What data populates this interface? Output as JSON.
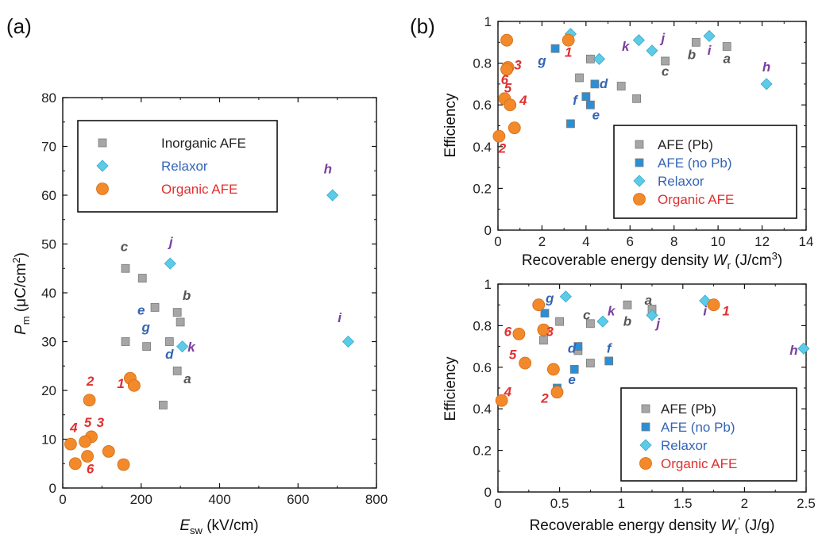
{
  "colors": {
    "AFE (Pb)": "#a6a6a6",
    "AFE (no Pb)": "#2a8fd6",
    "Relaxor": "#5ccbe8",
    "Organic AFE": "#f28a2c",
    "Inorganic AFE": "#a6a6a6"
  },
  "label_colors": {
    "inorganic": "#555555",
    "nopb": "#3465b5",
    "relaxor": "#7a3fa0",
    "organic": "#e03030"
  },
  "legend_text_colors": {
    "AFE (Pb)": "#222222",
    "Inorganic AFE": "#222222",
    "AFE (no Pb)": "#3465b5",
    "Relaxor": "#3465b5",
    "Organic AFE": "#e03030"
  },
  "chart_data": [
    {
      "panel": "(a)",
      "type": "scatter",
      "xlabel": "E_sw (kV/cm)",
      "xlabel_main": "E",
      "xlabel_sub": "sw",
      "xlabel_unit": "(kV/cm)",
      "ylabel": "P_m (μC/cm²)",
      "ylabel_main": "P",
      "ylabel_sub": "m",
      "ylabel_unit": "(μC/cm",
      "ylabel_sup": "2",
      "ylabel_close": ")",
      "xlim": [
        0,
        800
      ],
      "ylim": [
        0,
        80
      ],
      "xticks": [
        0,
        200,
        400,
        600,
        800
      ],
      "yticks": [
        0,
        10,
        20,
        30,
        40,
        50,
        60,
        70,
        80
      ],
      "legend": [
        "Inorganic AFE",
        "Relaxor",
        "Organic AFE"
      ],
      "series": [
        {
          "name": "Inorganic AFE",
          "marker": "square",
          "points": [
            {
              "x": 160,
              "y": 45,
              "label": "c"
            },
            {
              "x": 203,
              "y": 43
            },
            {
              "x": 235,
              "y": 37
            },
            {
              "x": 292,
              "y": 36,
              "label": "b"
            },
            {
              "x": 300,
              "y": 34
            },
            {
              "x": 160,
              "y": 30
            },
            {
              "x": 214,
              "y": 29
            },
            {
              "x": 272,
              "y": 30
            },
            {
              "x": 292,
              "y": 24,
              "label": "a"
            },
            {
              "x": 256,
              "y": 17
            }
          ]
        },
        {
          "name": "AFE (no Pb)",
          "marker": "square",
          "points": [
            {
              "x": 0,
              "y": 0,
              "label": "e",
              "hide": true
            },
            {
              "x": 0,
              "y": 0,
              "label": "g",
              "hide": true
            },
            {
              "x": 0,
              "y": 0,
              "label": "d",
              "hide": true
            }
          ]
        },
        {
          "name": "Relaxor",
          "marker": "diamond",
          "points": [
            {
              "x": 688,
              "y": 60,
              "label": "h"
            },
            {
              "x": 274,
              "y": 46,
              "label": "j"
            },
            {
              "x": 728,
              "y": 30,
              "label": "i"
            },
            {
              "x": 305,
              "y": 29,
              "label": "k"
            }
          ]
        },
        {
          "name": "Organic AFE",
          "marker": "circle",
          "points": [
            {
              "x": 172,
              "y": 22.5,
              "label": "1"
            },
            {
              "x": 182,
              "y": 21
            },
            {
              "x": 68,
              "y": 18,
              "label": "2"
            },
            {
              "x": 73,
              "y": 10.5,
              "label": "3"
            },
            {
              "x": 20,
              "y": 9,
              "label": "4"
            },
            {
              "x": 57,
              "y": 9.5,
              "label": "5"
            },
            {
              "x": 117,
              "y": 7.5
            },
            {
              "x": 63,
              "y": 6.5,
              "label": "6"
            },
            {
              "x": 32,
              "y": 5
            },
            {
              "x": 155,
              "y": 4.8
            }
          ]
        }
      ],
      "text_labels": [
        {
          "text": "c",
          "x": 157,
          "y": 48.5,
          "group": "inorganic"
        },
        {
          "text": "b",
          "x": 316,
          "y": 38.5,
          "group": "inorganic"
        },
        {
          "text": "a",
          "x": 318,
          "y": 21.5,
          "group": "inorganic"
        },
        {
          "text": "e",
          "x": 200,
          "y": 35.5,
          "group": "nopb"
        },
        {
          "text": "g",
          "x": 212,
          "y": 32,
          "group": "nopb"
        },
        {
          "text": "d",
          "x": 272,
          "y": 26.5,
          "group": "nopb"
        },
        {
          "text": "h",
          "x": 676,
          "y": 64.5,
          "group": "relaxor"
        },
        {
          "text": "j",
          "x": 276,
          "y": 49.5,
          "group": "relaxor"
        },
        {
          "text": "i",
          "x": 706,
          "y": 34,
          "group": "relaxor"
        },
        {
          "text": "k",
          "x": 328,
          "y": 28,
          "group": "relaxor"
        },
        {
          "text": "1",
          "x": 148,
          "y": 20.5,
          "group": "organic"
        },
        {
          "text": "2",
          "x": 70,
          "y": 21,
          "group": "organic"
        },
        {
          "text": "3",
          "x": 96,
          "y": 12.5,
          "group": "organic"
        },
        {
          "text": "4",
          "x": 28,
          "y": 11.5,
          "group": "organic"
        },
        {
          "text": "5",
          "x": 64,
          "y": 12.5,
          "group": "organic"
        },
        {
          "text": "6",
          "x": 70,
          "y": 3,
          "group": "organic"
        }
      ]
    },
    {
      "panel": "(b) top",
      "type": "scatter",
      "xlabel": "Recoverable energy density W_r (J/cm³)",
      "xlabel_main": "Recoverable energy density ",
      "xlabel_var": "W",
      "xlabel_sub": "r",
      "xlabel_unit": " (J/cm",
      "xlabel_sup": "3",
      "xlabel_close": ")",
      "ylabel": "Efficiency",
      "xlim": [
        0,
        14
      ],
      "ylim": [
        0,
        1
      ],
      "xticks": [
        0,
        2,
        4,
        6,
        8,
        10,
        12,
        14
      ],
      "yticks": [
        0,
        0.2,
        0.4,
        0.6,
        0.8,
        1
      ],
      "legend": [
        "AFE (Pb)",
        "AFE (no Pb)",
        "Relaxor",
        "Organic AFE"
      ],
      "series": [
        {
          "name": "AFE (Pb)",
          "marker": "square",
          "points": [
            {
              "x": 10.4,
              "y": 0.88
            },
            {
              "x": 9.0,
              "y": 0.9
            },
            {
              "x": 7.6,
              "y": 0.81
            },
            {
              "x": 4.2,
              "y": 0.82
            },
            {
              "x": 3.7,
              "y": 0.73
            },
            {
              "x": 5.6,
              "y": 0.69
            },
            {
              "x": 6.3,
              "y": 0.63
            }
          ]
        },
        {
          "name": "AFE (no Pb)",
          "marker": "square",
          "points": [
            {
              "x": 2.6,
              "y": 0.87
            },
            {
              "x": 4.4,
              "y": 0.7
            },
            {
              "x": 4.0,
              "y": 0.64
            },
            {
              "x": 4.2,
              "y": 0.6
            },
            {
              "x": 3.3,
              "y": 0.51
            }
          ]
        },
        {
          "name": "Relaxor",
          "marker": "diamond",
          "points": [
            {
              "x": 3.3,
              "y": 0.94
            },
            {
              "x": 6.4,
              "y": 0.91
            },
            {
              "x": 9.6,
              "y": 0.93
            },
            {
              "x": 7.0,
              "y": 0.86
            },
            {
              "x": 4.6,
              "y": 0.82
            },
            {
              "x": 12.2,
              "y": 0.7
            }
          ]
        },
        {
          "name": "Organic AFE",
          "marker": "circle",
          "points": [
            {
              "x": 0.4,
              "y": 0.91
            },
            {
              "x": 3.2,
              "y": 0.91
            },
            {
              "x": 0.45,
              "y": 0.78
            },
            {
              "x": 0.4,
              "y": 0.77
            },
            {
              "x": 0.3,
              "y": 0.63
            },
            {
              "x": 0.55,
              "y": 0.6
            },
            {
              "x": 0.75,
              "y": 0.49
            },
            {
              "x": 0.05,
              "y": 0.45
            }
          ]
        }
      ],
      "text_labels": [
        {
          "text": "a",
          "x": 10.4,
          "y": 0.8,
          "group": "inorganic"
        },
        {
          "text": "b",
          "x": 8.8,
          "y": 0.82,
          "group": "inorganic"
        },
        {
          "text": "c",
          "x": 7.6,
          "y": 0.74,
          "group": "inorganic"
        },
        {
          "text": "g",
          "x": 2.0,
          "y": 0.79,
          "group": "nopb"
        },
        {
          "text": "d",
          "x": 4.8,
          "y": 0.68,
          "group": "nopb"
        },
        {
          "text": "f",
          "x": 3.5,
          "y": 0.6,
          "group": "nopb"
        },
        {
          "text": "e",
          "x": 4.45,
          "y": 0.53,
          "group": "nopb"
        },
        {
          "text": "k",
          "x": 5.8,
          "y": 0.86,
          "group": "relaxor"
        },
        {
          "text": "j",
          "x": 7.5,
          "y": 0.9,
          "group": "relaxor"
        },
        {
          "text": "i",
          "x": 9.6,
          "y": 0.84,
          "group": "relaxor"
        },
        {
          "text": "h",
          "x": 12.2,
          "y": 0.76,
          "group": "relaxor"
        },
        {
          "text": "1",
          "x": 3.2,
          "y": 0.83,
          "group": "organic"
        },
        {
          "text": "3",
          "x": 0.9,
          "y": 0.77,
          "group": "organic"
        },
        {
          "text": "6",
          "x": 0.3,
          "y": 0.7,
          "group": "organic"
        },
        {
          "text": "5",
          "x": 0.45,
          "y": 0.66,
          "group": "organic"
        },
        {
          "text": "4",
          "x": 1.15,
          "y": 0.6,
          "group": "organic"
        },
        {
          "text": "2",
          "x": 0.2,
          "y": 0.37,
          "group": "organic"
        }
      ]
    },
    {
      "panel": "(b) bottom",
      "type": "scatter",
      "xlabel": "Recoverable energy density W_r' (J/g)",
      "xlabel_main": "Recoverable energy density ",
      "xlabel_var": "W",
      "xlabel_sub": "r",
      "xlabel_prime": "'",
      "xlabel_unit": " (J/g)",
      "ylabel": "Efficiency",
      "xlim": [
        0,
        2.5
      ],
      "ylim": [
        0,
        1
      ],
      "xticks": [
        0,
        0.5,
        1,
        1.5,
        2,
        2.5
      ],
      "yticks": [
        0,
        0.2,
        0.4,
        0.6,
        0.8,
        1
      ],
      "legend": [
        "AFE (Pb)",
        "AFE (no Pb)",
        "Relaxor",
        "Organic AFE"
      ],
      "series": [
        {
          "name": "AFE (Pb)",
          "marker": "square",
          "points": [
            {
              "x": 1.05,
              "y": 0.9
            },
            {
              "x": 1.25,
              "y": 0.88
            },
            {
              "x": 0.75,
              "y": 0.81
            },
            {
              "x": 0.5,
              "y": 0.82
            },
            {
              "x": 0.37,
              "y": 0.73
            },
            {
              "x": 0.65,
              "y": 0.68
            },
            {
              "x": 0.75,
              "y": 0.62
            }
          ]
        },
        {
          "name": "AFE (no Pb)",
          "marker": "square",
          "points": [
            {
              "x": 0.38,
              "y": 0.86
            },
            {
              "x": 0.65,
              "y": 0.7
            },
            {
              "x": 0.9,
              "y": 0.63
            },
            {
              "x": 0.62,
              "y": 0.59
            },
            {
              "x": 0.48,
              "y": 0.5
            }
          ]
        },
        {
          "name": "Relaxor",
          "marker": "diamond",
          "points": [
            {
              "x": 0.55,
              "y": 0.94
            },
            {
              "x": 0.85,
              "y": 0.82
            },
            {
              "x": 1.25,
              "y": 0.85
            },
            {
              "x": 1.68,
              "y": 0.92
            },
            {
              "x": 2.48,
              "y": 0.69
            }
          ]
        },
        {
          "name": "Organic AFE",
          "marker": "circle",
          "points": [
            {
              "x": 0.33,
              "y": 0.9
            },
            {
              "x": 1.75,
              "y": 0.9
            },
            {
              "x": 0.37,
              "y": 0.78
            },
            {
              "x": 0.17,
              "y": 0.76
            },
            {
              "x": 0.22,
              "y": 0.62
            },
            {
              "x": 0.45,
              "y": 0.59
            },
            {
              "x": 0.48,
              "y": 0.48
            },
            {
              "x": 0.03,
              "y": 0.44
            }
          ]
        }
      ],
      "text_labels": [
        {
          "text": "g",
          "x": 0.42,
          "y": 0.91,
          "group": "nopb"
        },
        {
          "text": "3",
          "x": 0.42,
          "y": 0.75,
          "group": "organic"
        },
        {
          "text": "6",
          "x": 0.08,
          "y": 0.75,
          "group": "organic"
        },
        {
          "text": "c",
          "x": 0.72,
          "y": 0.83,
          "group": "inorganic"
        },
        {
          "text": "k",
          "x": 0.92,
          "y": 0.85,
          "group": "relaxor"
        },
        {
          "text": "a",
          "x": 1.22,
          "y": 0.9,
          "group": "inorganic"
        },
        {
          "text": "b",
          "x": 1.05,
          "y": 0.8,
          "group": "inorganic"
        },
        {
          "text": "j",
          "x": 1.3,
          "y": 0.79,
          "group": "relaxor"
        },
        {
          "text": "i",
          "x": 1.68,
          "y": 0.85,
          "group": "relaxor"
        },
        {
          "text": "1",
          "x": 1.85,
          "y": 0.85,
          "group": "organic"
        },
        {
          "text": "d",
          "x": 0.6,
          "y": 0.67,
          "group": "nopb"
        },
        {
          "text": "f",
          "x": 0.9,
          "y": 0.67,
          "group": "nopb"
        },
        {
          "text": "h",
          "x": 2.4,
          "y": 0.66,
          "group": "relaxor"
        },
        {
          "text": "5",
          "x": 0.12,
          "y": 0.64,
          "group": "organic"
        },
        {
          "text": "e",
          "x": 0.6,
          "y": 0.52,
          "group": "nopb"
        },
        {
          "text": "2",
          "x": 0.38,
          "y": 0.43,
          "group": "organic"
        },
        {
          "text": "4",
          "x": 0.08,
          "y": 0.46,
          "group": "organic"
        }
      ]
    }
  ],
  "panel_labels": [
    "(a)",
    "(b)"
  ]
}
